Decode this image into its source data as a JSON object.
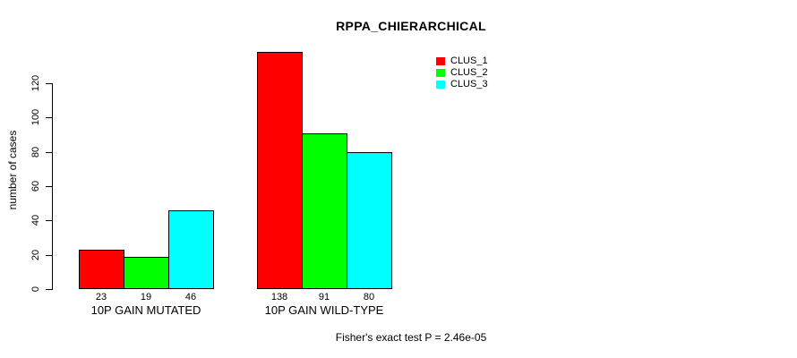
{
  "title": "RPPA_CHIERARCHICAL",
  "y_axis": {
    "label": "number of cases",
    "ticks": [
      0,
      20,
      40,
      60,
      80,
      100,
      120
    ]
  },
  "footer": "Fisher's exact test P = 2.46e-05",
  "legend": {
    "items": [
      {
        "label": "CLUS_1",
        "color": "#FF0000"
      },
      {
        "label": "CLUS_2",
        "color": "#00FF00"
      },
      {
        "label": "CLUS_3",
        "color": "#00FFFF"
      }
    ]
  },
  "chart_data": {
    "type": "bar",
    "title": "RPPA_CHIERARCHICAL",
    "xlabel": "",
    "ylabel": "number of cases",
    "categories": [
      "10P GAIN MUTATED",
      "10P GAIN WILD-TYPE"
    ],
    "series": [
      {
        "name": "CLUS_1",
        "color": "#FF0000",
        "values": [
          23,
          138
        ]
      },
      {
        "name": "CLUS_2",
        "color": "#00FF00",
        "values": [
          19,
          91
        ]
      },
      {
        "name": "CLUS_3",
        "color": "#00FFFF",
        "values": [
          46,
          80
        ]
      }
    ],
    "bar_value_labels": [
      [
        23,
        19,
        46
      ],
      [
        138,
        91,
        80
      ]
    ],
    "yticks": [
      0,
      20,
      40,
      60,
      80,
      100,
      120
    ],
    "ylim": [
      0,
      140
    ],
    "grid": false,
    "legend_position": "top-right",
    "annotation": "Fisher's exact test P = 2.46e-05",
    "bar_border_color": "#000000",
    "background_color": "#FFFFFF"
  }
}
